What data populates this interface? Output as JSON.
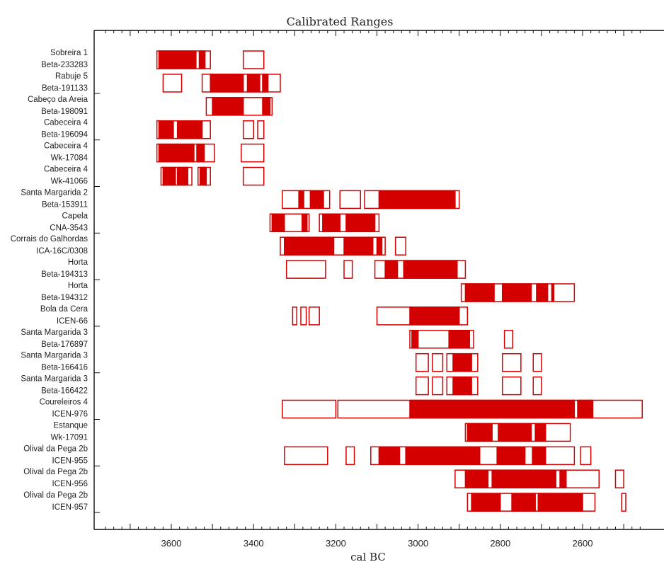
{
  "chart_data": {
    "type": "range",
    "title": "Calibrated Ranges",
    "xlabel": "cal BC",
    "x_reversed": true,
    "xlim": [
      3780,
      2440
    ],
    "x_ticks": [
      3600,
      3400,
      3200,
      3000,
      2800,
      2600
    ],
    "colors": {
      "range": "#d40000"
    },
    "samples": [
      {
        "site": "Sobreira 1",
        "lab": "Beta-233283",
        "open": [
          [
            3635,
            3505
          ],
          [
            3425,
            3375
          ]
        ],
        "solid": [
          [
            3630,
            3540
          ],
          [
            3532,
            3518
          ]
        ]
      },
      {
        "site": "Rabuje 5",
        "lab": "Beta-191133",
        "open": [
          [
            3620,
            3575
          ],
          [
            3525,
            3335
          ]
        ],
        "solid": [
          [
            3505,
            3425
          ],
          [
            3415,
            3385
          ],
          [
            3378,
            3365
          ]
        ]
      },
      {
        "site": "Cabeço da Areia",
        "lab": "Beta-198091",
        "open": [
          [
            3515,
            3355
          ]
        ],
        "solid": [
          [
            3500,
            3425
          ],
          [
            3378,
            3360
          ]
        ]
      },
      {
        "site": "Cabeceira 4",
        "lab": "Beta-196094",
        "open": [
          [
            3635,
            3505
          ],
          [
            3425,
            3400
          ],
          [
            3390,
            3375
          ]
        ],
        "solid": [
          [
            3630,
            3595
          ],
          [
            3585,
            3525
          ]
        ]
      },
      {
        "site": "Cabeceira 4",
        "lab": "Wk-17084",
        "open": [
          [
            3635,
            3495
          ],
          [
            3430,
            3375
          ]
        ],
        "solid": [
          [
            3630,
            3545
          ],
          [
            3538,
            3520
          ]
        ]
      },
      {
        "site": "Cabeceira 4",
        "lab": "Wk-41066",
        "open": [
          [
            3625,
            3550
          ],
          [
            3535,
            3505
          ],
          [
            3425,
            3375
          ]
        ],
        "solid": [
          [
            3620,
            3590
          ],
          [
            3585,
            3560
          ],
          [
            3530,
            3515
          ]
        ]
      },
      {
        "site": "Santa Margarida 2",
        "lab": "Beta-153911",
        "open": [
          [
            3330,
            3215
          ],
          [
            3190,
            3140
          ],
          [
            3130,
            2900
          ]
        ],
        "solid": [
          [
            3290,
            3278
          ],
          [
            3262,
            3230
          ],
          [
            3095,
            2910
          ]
        ]
      },
      {
        "site": "Capela",
        "lab": "CNA-3543",
        "open": [
          [
            3360,
            3265
          ],
          [
            3240,
            3095
          ]
        ],
        "solid": [
          [
            3355,
            3325
          ],
          [
            3282,
            3270
          ],
          [
            3232,
            3190
          ],
          [
            3175,
            3105
          ]
        ]
      },
      {
        "site": "Corrais do Galhordas",
        "lab": "ICA-16C/0308",
        "open": [
          [
            3335,
            3080
          ],
          [
            3055,
            3030
          ]
        ],
        "solid": [
          [
            3325,
            3205
          ],
          [
            3180,
            3110
          ],
          [
            3100,
            3088
          ]
        ]
      },
      {
        "site": "Horta",
        "lab": "Beta-194313",
        "open": [
          [
            3320,
            3225
          ],
          [
            3180,
            3160
          ],
          [
            3105,
            2885
          ]
        ],
        "solid": [
          [
            3080,
            3050
          ],
          [
            3035,
            2905
          ]
        ]
      },
      {
        "site": "Horta",
        "lab": "Beta-194312",
        "open": [
          [
            2895,
            2620
          ]
        ],
        "solid": [
          [
            2885,
            2815
          ],
          [
            2795,
            2725
          ],
          [
            2712,
            2685
          ],
          [
            2675,
            2670
          ]
        ]
      },
      {
        "site": "Bola da Cera",
        "lab": "ICEN-66",
        "open": [
          [
            3305,
            3295
          ],
          [
            3285,
            3272
          ],
          [
            3265,
            3240
          ],
          [
            3100,
            2880
          ]
        ],
        "solid": [
          [
            3020,
            2900
          ]
        ]
      },
      {
        "site": "Santa Margarida 3",
        "lab": "Beta-176897",
        "open": [
          [
            3020,
            2865
          ],
          [
            2790,
            2770
          ]
        ],
        "solid": [
          [
            3015,
            3000
          ],
          [
            2925,
            2875
          ]
        ]
      },
      {
        "site": "Santa Margarida 3",
        "lab": "Beta-166416",
        "open": [
          [
            3005,
            2975
          ],
          [
            2965,
            2940
          ],
          [
            2930,
            2855
          ],
          [
            2795,
            2750
          ],
          [
            2720,
            2700
          ]
        ],
        "solid": [
          [
            2915,
            2870
          ]
        ]
      },
      {
        "site": "Santa Margarida 3",
        "lab": "Beta-166422",
        "open": [
          [
            3005,
            2975
          ],
          [
            2965,
            2940
          ],
          [
            2930,
            2855
          ],
          [
            2795,
            2750
          ],
          [
            2720,
            2700
          ]
        ],
        "solid": [
          [
            2915,
            2870
          ]
        ]
      },
      {
        "site": "Coureleiros 4",
        "lab": "ICEN-976",
        "open": [
          [
            3330,
            3200
          ],
          [
            3195,
            2455
          ]
        ],
        "solid": [
          [
            3020,
            2620
          ],
          [
            2612,
            2575
          ]
        ]
      },
      {
        "site": "Estanque",
        "lab": "Wk-17091",
        "open": [
          [
            2885,
            2630
          ]
        ],
        "solid": [
          [
            2880,
            2820
          ],
          [
            2805,
            2725
          ],
          [
            2715,
            2690
          ]
        ]
      },
      {
        "site": "Olival da Pega 2b",
        "lab": "ICEN-955",
        "open": [
          [
            3325,
            3220
          ],
          [
            3175,
            3155
          ],
          [
            3115,
            2620
          ],
          [
            2605,
            2580
          ]
        ],
        "solid": [
          [
            3095,
            3045
          ],
          [
            3030,
            2850
          ],
          [
            2808,
            2740
          ],
          [
            2722,
            2690
          ]
        ]
      },
      {
        "site": "Olival da Pega 2b",
        "lab": "ICEN-956",
        "open": [
          [
            2910,
            2560
          ],
          [
            2520,
            2500
          ]
        ],
        "solid": [
          [
            2885,
            2830
          ],
          [
            2820,
            2665
          ],
          [
            2655,
            2640
          ]
        ]
      },
      {
        "site": "Olival da Pega 2b",
        "lab": "ICEN-957",
        "open": [
          [
            2880,
            2570
          ],
          [
            2505,
            2495
          ]
        ],
        "solid": [
          [
            2870,
            2800
          ],
          [
            2772,
            2715
          ],
          [
            2708,
            2600
          ]
        ]
      }
    ]
  }
}
